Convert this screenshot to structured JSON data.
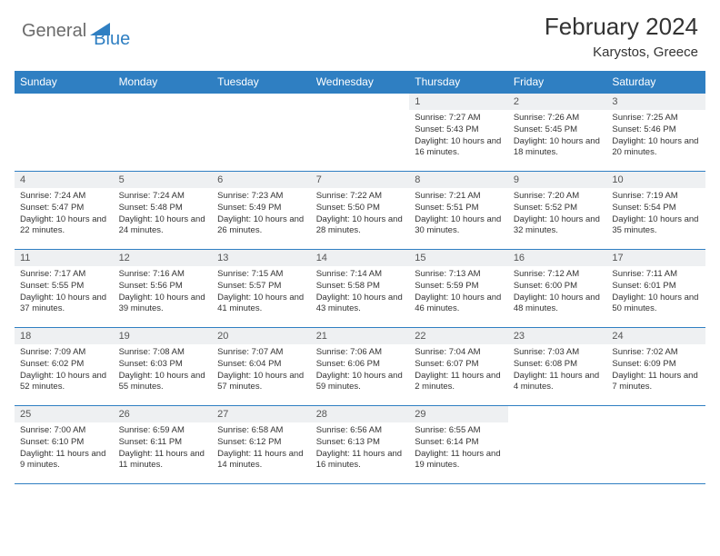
{
  "brand": {
    "general": "General",
    "blue": "Blue"
  },
  "title": "February 2024",
  "location": "Karystos, Greece",
  "colors": {
    "header_bg": "#2f7fc2",
    "header_text": "#ffffff",
    "daynum_bg": "#eef0f2",
    "border": "#2f7fc2",
    "text": "#333333",
    "logo_gray": "#6b6b6b",
    "logo_blue": "#2f7fc2",
    "page_bg": "#ffffff"
  },
  "weekdays": [
    "Sunday",
    "Monday",
    "Tuesday",
    "Wednesday",
    "Thursday",
    "Friday",
    "Saturday"
  ],
  "weeks": [
    [
      null,
      null,
      null,
      null,
      {
        "num": "1",
        "sunrise": "Sunrise: 7:27 AM",
        "sunset": "Sunset: 5:43 PM",
        "daylight": "Daylight: 10 hours and 16 minutes."
      },
      {
        "num": "2",
        "sunrise": "Sunrise: 7:26 AM",
        "sunset": "Sunset: 5:45 PM",
        "daylight": "Daylight: 10 hours and 18 minutes."
      },
      {
        "num": "3",
        "sunrise": "Sunrise: 7:25 AM",
        "sunset": "Sunset: 5:46 PM",
        "daylight": "Daylight: 10 hours and 20 minutes."
      }
    ],
    [
      {
        "num": "4",
        "sunrise": "Sunrise: 7:24 AM",
        "sunset": "Sunset: 5:47 PM",
        "daylight": "Daylight: 10 hours and 22 minutes."
      },
      {
        "num": "5",
        "sunrise": "Sunrise: 7:24 AM",
        "sunset": "Sunset: 5:48 PM",
        "daylight": "Daylight: 10 hours and 24 minutes."
      },
      {
        "num": "6",
        "sunrise": "Sunrise: 7:23 AM",
        "sunset": "Sunset: 5:49 PM",
        "daylight": "Daylight: 10 hours and 26 minutes."
      },
      {
        "num": "7",
        "sunrise": "Sunrise: 7:22 AM",
        "sunset": "Sunset: 5:50 PM",
        "daylight": "Daylight: 10 hours and 28 minutes."
      },
      {
        "num": "8",
        "sunrise": "Sunrise: 7:21 AM",
        "sunset": "Sunset: 5:51 PM",
        "daylight": "Daylight: 10 hours and 30 minutes."
      },
      {
        "num": "9",
        "sunrise": "Sunrise: 7:20 AM",
        "sunset": "Sunset: 5:52 PM",
        "daylight": "Daylight: 10 hours and 32 minutes."
      },
      {
        "num": "10",
        "sunrise": "Sunrise: 7:19 AM",
        "sunset": "Sunset: 5:54 PM",
        "daylight": "Daylight: 10 hours and 35 minutes."
      }
    ],
    [
      {
        "num": "11",
        "sunrise": "Sunrise: 7:17 AM",
        "sunset": "Sunset: 5:55 PM",
        "daylight": "Daylight: 10 hours and 37 minutes."
      },
      {
        "num": "12",
        "sunrise": "Sunrise: 7:16 AM",
        "sunset": "Sunset: 5:56 PM",
        "daylight": "Daylight: 10 hours and 39 minutes."
      },
      {
        "num": "13",
        "sunrise": "Sunrise: 7:15 AM",
        "sunset": "Sunset: 5:57 PM",
        "daylight": "Daylight: 10 hours and 41 minutes."
      },
      {
        "num": "14",
        "sunrise": "Sunrise: 7:14 AM",
        "sunset": "Sunset: 5:58 PM",
        "daylight": "Daylight: 10 hours and 43 minutes."
      },
      {
        "num": "15",
        "sunrise": "Sunrise: 7:13 AM",
        "sunset": "Sunset: 5:59 PM",
        "daylight": "Daylight: 10 hours and 46 minutes."
      },
      {
        "num": "16",
        "sunrise": "Sunrise: 7:12 AM",
        "sunset": "Sunset: 6:00 PM",
        "daylight": "Daylight: 10 hours and 48 minutes."
      },
      {
        "num": "17",
        "sunrise": "Sunrise: 7:11 AM",
        "sunset": "Sunset: 6:01 PM",
        "daylight": "Daylight: 10 hours and 50 minutes."
      }
    ],
    [
      {
        "num": "18",
        "sunrise": "Sunrise: 7:09 AM",
        "sunset": "Sunset: 6:02 PM",
        "daylight": "Daylight: 10 hours and 52 minutes."
      },
      {
        "num": "19",
        "sunrise": "Sunrise: 7:08 AM",
        "sunset": "Sunset: 6:03 PM",
        "daylight": "Daylight: 10 hours and 55 minutes."
      },
      {
        "num": "20",
        "sunrise": "Sunrise: 7:07 AM",
        "sunset": "Sunset: 6:04 PM",
        "daylight": "Daylight: 10 hours and 57 minutes."
      },
      {
        "num": "21",
        "sunrise": "Sunrise: 7:06 AM",
        "sunset": "Sunset: 6:06 PM",
        "daylight": "Daylight: 10 hours and 59 minutes."
      },
      {
        "num": "22",
        "sunrise": "Sunrise: 7:04 AM",
        "sunset": "Sunset: 6:07 PM",
        "daylight": "Daylight: 11 hours and 2 minutes."
      },
      {
        "num": "23",
        "sunrise": "Sunrise: 7:03 AM",
        "sunset": "Sunset: 6:08 PM",
        "daylight": "Daylight: 11 hours and 4 minutes."
      },
      {
        "num": "24",
        "sunrise": "Sunrise: 7:02 AM",
        "sunset": "Sunset: 6:09 PM",
        "daylight": "Daylight: 11 hours and 7 minutes."
      }
    ],
    [
      {
        "num": "25",
        "sunrise": "Sunrise: 7:00 AM",
        "sunset": "Sunset: 6:10 PM",
        "daylight": "Daylight: 11 hours and 9 minutes."
      },
      {
        "num": "26",
        "sunrise": "Sunrise: 6:59 AM",
        "sunset": "Sunset: 6:11 PM",
        "daylight": "Daylight: 11 hours and 11 minutes."
      },
      {
        "num": "27",
        "sunrise": "Sunrise: 6:58 AM",
        "sunset": "Sunset: 6:12 PM",
        "daylight": "Daylight: 11 hours and 14 minutes."
      },
      {
        "num": "28",
        "sunrise": "Sunrise: 6:56 AM",
        "sunset": "Sunset: 6:13 PM",
        "daylight": "Daylight: 11 hours and 16 minutes."
      },
      {
        "num": "29",
        "sunrise": "Sunrise: 6:55 AM",
        "sunset": "Sunset: 6:14 PM",
        "daylight": "Daylight: 11 hours and 19 minutes."
      },
      null,
      null
    ]
  ]
}
